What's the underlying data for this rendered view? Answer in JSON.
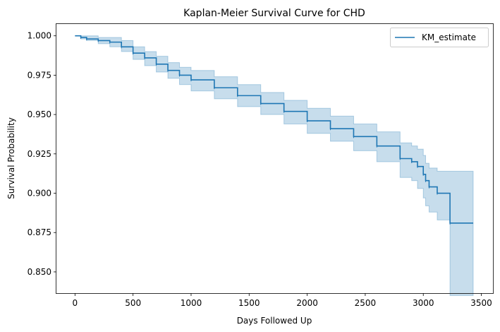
{
  "chart_data": {
    "type": "line",
    "title": "Kaplan-Meier Survival Curve for CHD",
    "xlabel": "Days Followed Up",
    "ylabel": "Survival Probability",
    "xlim": [
      -160,
      3600
    ],
    "ylim": [
      0.8365,
      1.0075
    ],
    "x_ticks": [
      0,
      500,
      1000,
      1500,
      2000,
      2500,
      3000,
      3500
    ],
    "y_ticks": [
      0.85,
      0.875,
      0.9,
      0.925,
      0.95,
      0.975,
      1.0
    ],
    "legend": {
      "position": "top-right",
      "entries": [
        "KM_estimate"
      ]
    },
    "colors": {
      "line": "#1f77b4",
      "band": "#1f77b4"
    },
    "series": [
      {
        "name": "KM_estimate",
        "step": true,
        "x": [
          0,
          50,
          100,
          200,
          300,
          400,
          500,
          600,
          700,
          800,
          900,
          1000,
          1200,
          1400,
          1600,
          1800,
          2000,
          2200,
          2400,
          2600,
          2800,
          2900,
          2950,
          3000,
          3020,
          3050,
          3120,
          3230,
          3430
        ],
        "y": [
          1.0,
          0.999,
          0.998,
          0.997,
          0.996,
          0.993,
          0.989,
          0.986,
          0.982,
          0.978,
          0.975,
          0.972,
          0.967,
          0.962,
          0.957,
          0.952,
          0.946,
          0.941,
          0.936,
          0.93,
          0.922,
          0.92,
          0.917,
          0.912,
          0.908,
          0.904,
          0.9,
          0.881,
          0.881
        ],
        "ci_lower": [
          1.0,
          0.998,
          0.997,
          0.995,
          0.993,
          0.99,
          0.985,
          0.981,
          0.977,
          0.973,
          0.969,
          0.965,
          0.96,
          0.955,
          0.95,
          0.944,
          0.938,
          0.933,
          0.927,
          0.92,
          0.91,
          0.908,
          0.903,
          0.897,
          0.892,
          0.888,
          0.883,
          0.835,
          0.835
        ],
        "ci_upper": [
          1.0,
          1.0,
          1.0,
          0.999,
          0.999,
          0.997,
          0.993,
          0.99,
          0.987,
          0.983,
          0.98,
          0.978,
          0.974,
          0.969,
          0.964,
          0.959,
          0.954,
          0.949,
          0.944,
          0.939,
          0.932,
          0.93,
          0.928,
          0.924,
          0.919,
          0.916,
          0.914,
          0.914,
          0.914
        ]
      }
    ]
  }
}
